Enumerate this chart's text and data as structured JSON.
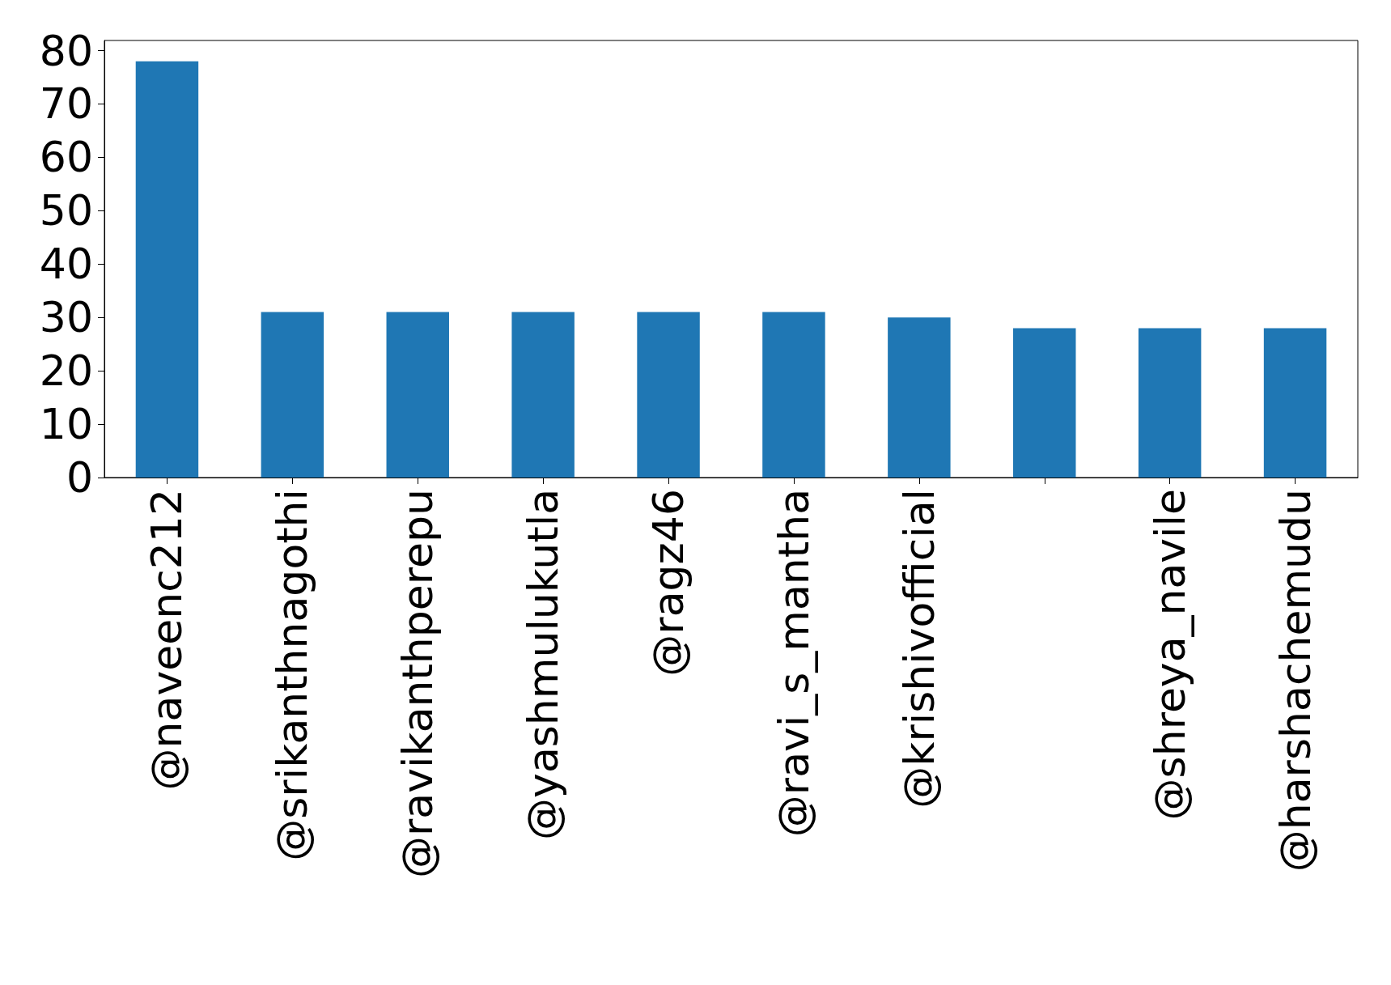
{
  "chart_data": {
    "type": "bar",
    "categories": [
      "@naveenc212",
      "@srikanthnagothi",
      "@ravikanthperepu",
      "@yashmulukutla",
      "@ragz46",
      "@ravi_s_mantha",
      "@krishivofficial",
      null,
      "@shreya_navile",
      "@harshachemudu"
    ],
    "values": [
      78,
      31,
      31,
      31,
      31,
      31,
      30,
      28,
      28,
      28
    ],
    "color": "#1f77b4",
    "ylim": [
      0,
      81.9
    ],
    "yticks": [
      0,
      10,
      20,
      30,
      40,
      50,
      60,
      70,
      80
    ],
    "grid": false
  }
}
